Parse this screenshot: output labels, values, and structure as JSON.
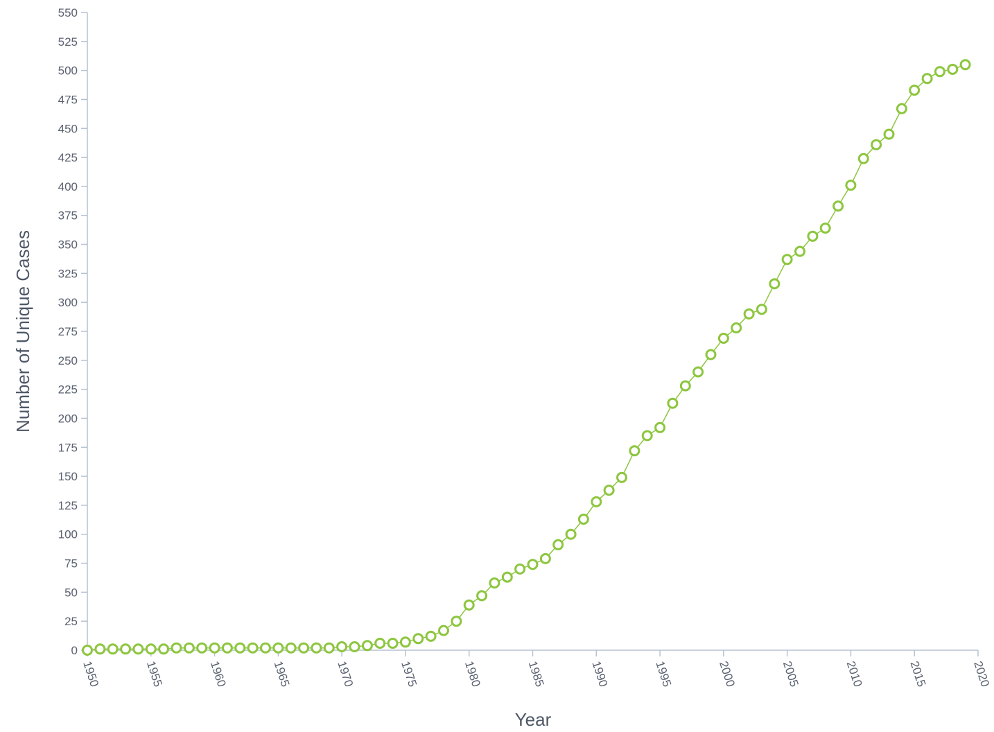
{
  "chart_data": {
    "type": "line",
    "title": "",
    "xlabel": "Year",
    "ylabel": "Number of Unique Cases",
    "xlim": [
      1950,
      2020
    ],
    "ylim": [
      0,
      550
    ],
    "x_ticks": [
      1950,
      1955,
      1960,
      1965,
      1970,
      1975,
      1980,
      1985,
      1990,
      1995,
      2000,
      2005,
      2010,
      2015,
      2020
    ],
    "y_ticks": [
      0,
      25,
      50,
      75,
      100,
      125,
      150,
      175,
      200,
      225,
      250,
      275,
      300,
      325,
      350,
      375,
      400,
      425,
      450,
      475,
      500,
      525,
      550
    ],
    "grid": false,
    "legend": "none",
    "color": "#8dc63f",
    "series": [
      {
        "x": [
          1950,
          1951,
          1952,
          1953,
          1954,
          1955,
          1956,
          1957,
          1958,
          1959,
          1960,
          1961,
          1962,
          1963,
          1964,
          1965,
          1966,
          1967,
          1968,
          1969,
          1970,
          1971,
          1972,
          1973,
          1974,
          1975,
          1976,
          1977,
          1978,
          1979,
          1980,
          1981,
          1982,
          1983,
          1984,
          1985,
          1986,
          1987,
          1988,
          1989,
          1990,
          1991,
          1992,
          1993,
          1994,
          1995,
          1996,
          1997,
          1998,
          1999,
          2000,
          2001,
          2002,
          2003,
          2004,
          2005,
          2006,
          2007,
          2008,
          2009,
          2010,
          2011,
          2012,
          2013,
          2014,
          2015,
          2016,
          2017,
          2018,
          2019
        ],
        "y": [
          0,
          1,
          1,
          1,
          1,
          1,
          1,
          2,
          2,
          2,
          2,
          2,
          2,
          2,
          2,
          2,
          2,
          2,
          2,
          2,
          3,
          3,
          4,
          6,
          6,
          7,
          10,
          12,
          17,
          25,
          39,
          47,
          58,
          63,
          70,
          74,
          79,
          91,
          100,
          113,
          128,
          138,
          149,
          172,
          185,
          192,
          213,
          228,
          240,
          255,
          269,
          278,
          290,
          294,
          316,
          337,
          344,
          357,
          364,
          383,
          401,
          424,
          436,
          445,
          467,
          483,
          493,
          499,
          501,
          505
        ]
      }
    ]
  }
}
